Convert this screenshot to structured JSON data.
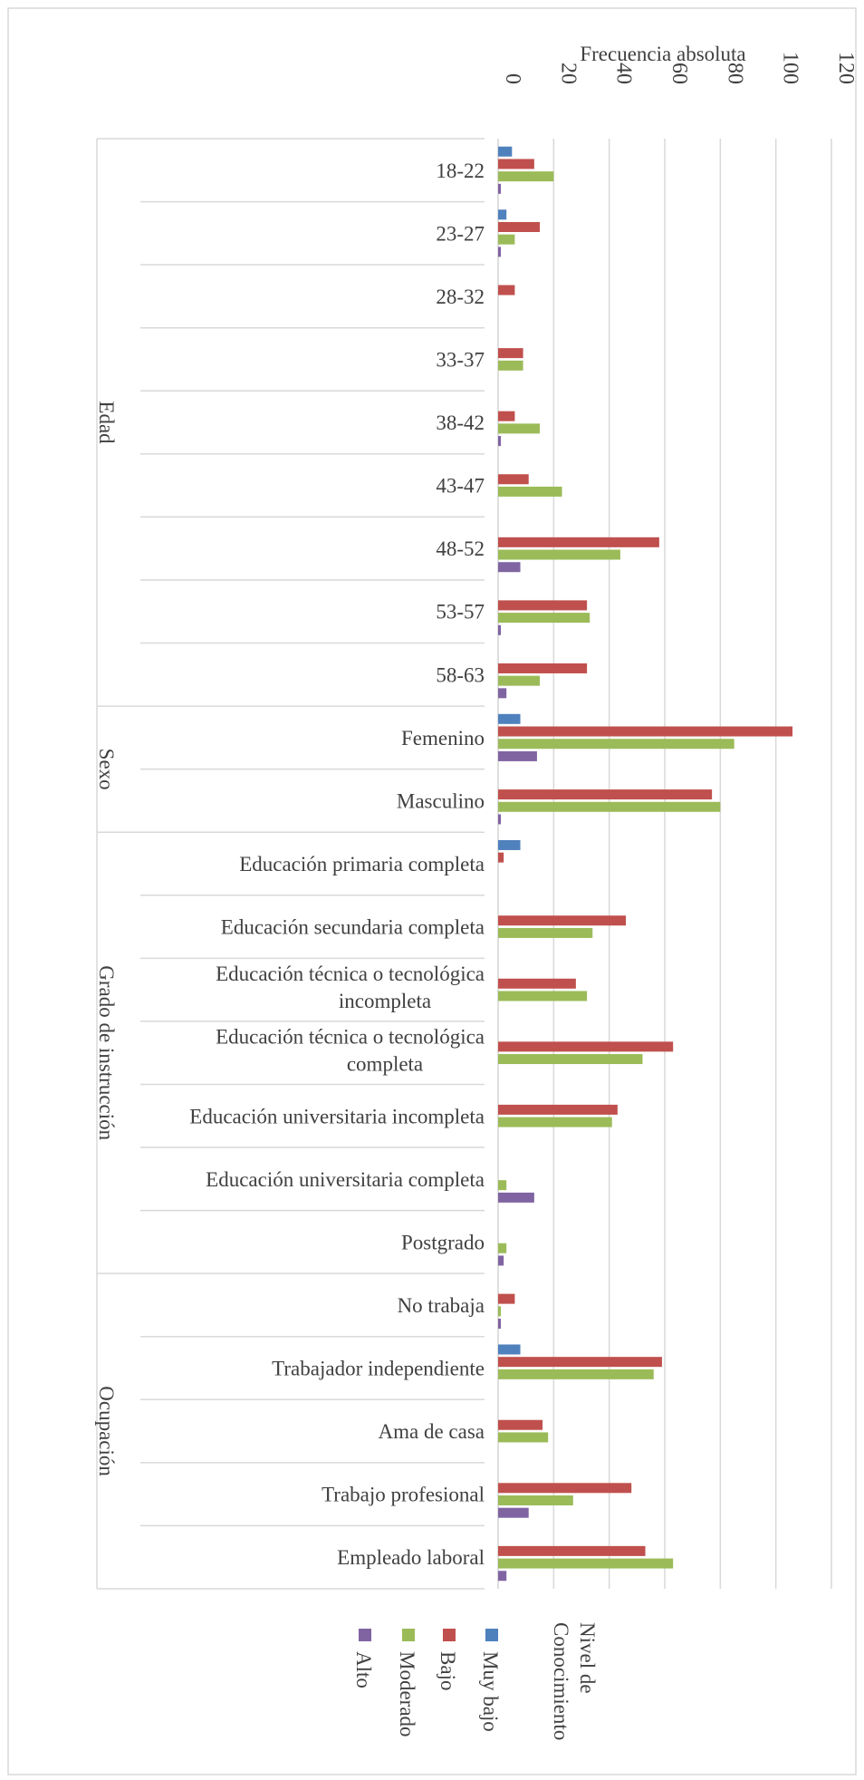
{
  "chart_data": {
    "type": "bar",
    "orientation": "horizontal",
    "title": "",
    "xlabel": "Frecuencia absoluta",
    "xlim": [
      0,
      120
    ],
    "x_ticks": [
      "0",
      "20",
      "40",
      "60",
      "80",
      "100",
      "120"
    ],
    "grid": true,
    "legend_title": "Nivel de Conocimiento",
    "legend_position": "bottom",
    "groups": [
      {
        "name": "Edad",
        "categories": [
          "18-22",
          "23-27",
          "28-32",
          "33-37",
          "38-42",
          "43-47",
          "48-52",
          "53-57",
          "58-63"
        ]
      },
      {
        "name": "Sexo",
        "categories": [
          "Femenino",
          "Masculino"
        ]
      },
      {
        "name": "Grado de instrucción",
        "categories": [
          "Educación primaria completa",
          "Educación secundaria completa",
          "Educación técnica o tecnológica incompleta",
          "Educación técnica o tecnológica completa",
          "Educación universitaria incompleta",
          "Educación universitaria completa",
          "Postgrado"
        ]
      },
      {
        "name": "Ocupación",
        "categories": [
          "No trabaja",
          "Trabajador independiente",
          "Ama de casa",
          "Trabajo profesional",
          "Empleado laboral"
        ]
      }
    ],
    "series": [
      {
        "name": "Muy bajo",
        "color": "#4f81bd",
        "values": [
          5,
          3,
          0,
          0,
          0,
          0,
          0,
          0,
          0,
          8,
          0,
          8,
          0,
          0,
          0,
          0,
          0,
          0,
          0,
          8,
          0,
          0,
          0
        ]
      },
      {
        "name": "Bajo",
        "color": "#c0504d",
        "values": [
          13,
          15,
          6,
          9,
          6,
          11,
          58,
          32,
          32,
          106,
          77,
          2,
          46,
          28,
          63,
          43,
          0,
          0,
          6,
          59,
          16,
          48,
          53
        ]
      },
      {
        "name": "Moderado",
        "color": "#9bbb59",
        "values": [
          20,
          6,
          0,
          9,
          15,
          23,
          44,
          33,
          15,
          85,
          80,
          0,
          34,
          32,
          52,
          41,
          3,
          3,
          1,
          56,
          18,
          27,
          63
        ]
      },
      {
        "name": "Alto",
        "color": "#8064a2",
        "values": [
          1,
          1,
          0,
          0,
          1,
          0,
          8,
          1,
          3,
          14,
          1,
          0,
          0,
          0,
          0,
          0,
          13,
          2,
          1,
          0,
          0,
          11,
          3
        ]
      }
    ]
  }
}
